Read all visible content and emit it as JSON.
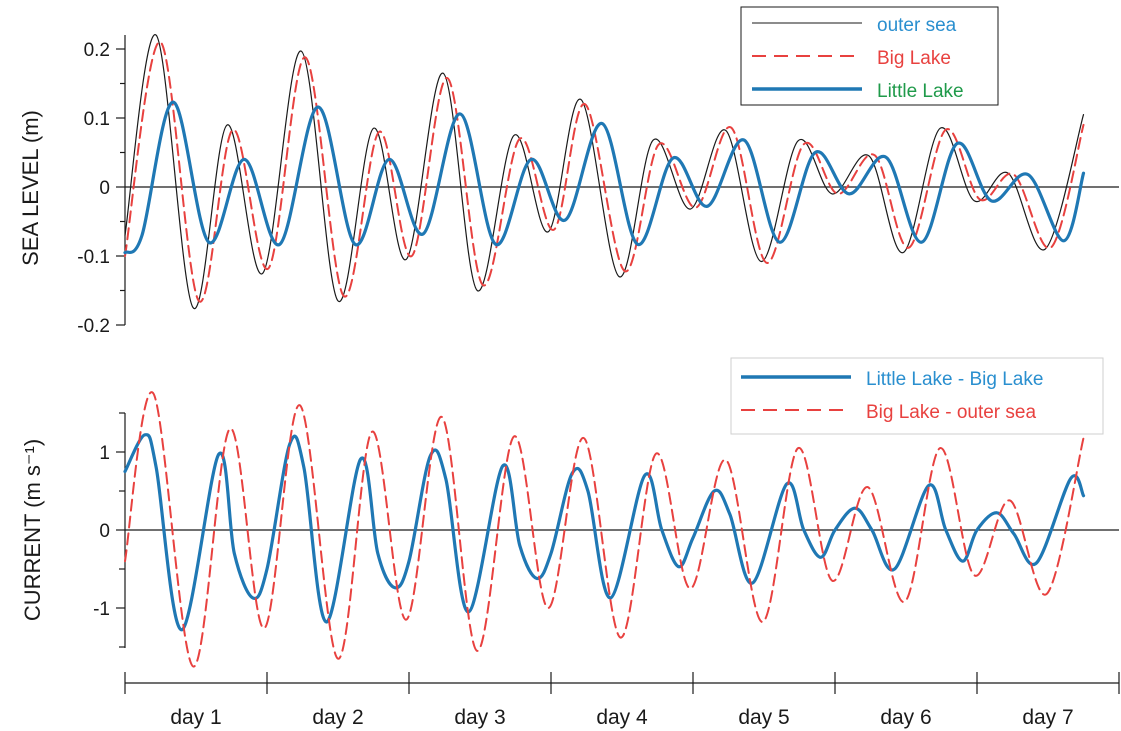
{
  "colors": {
    "outer_sea": "#1a1a1a",
    "big_lake": "#e8413f",
    "little_lake": "#1f78b4",
    "axis": "#1a1a1a",
    "legend_text_outer": "#2a8fcf",
    "legend_text_big": "#e8413f",
    "legend_text_little": "#1f9a4a",
    "legend_text_current_solid": "#2a8fcf",
    "legend_text_current_dashed": "#e8413f"
  },
  "x_axis": {
    "label": "",
    "range": [
      0.5,
      7.5
    ],
    "tick_positions": [
      0.5,
      1.5,
      2.5,
      3.5,
      4.5,
      5.5,
      6.5,
      7.5
    ],
    "day_labels": [
      "day 1",
      "day 2",
      "day 3",
      "day 4",
      "day 5",
      "day 6",
      "day 7"
    ]
  },
  "chart_data": [
    {
      "type": "line",
      "title": "",
      "ylabel": "SEA LEVEL (m)",
      "xlabel": "",
      "ylim": [
        -0.2,
        0.22
      ],
      "yticks": [
        -0.2,
        -0.1,
        0,
        0.1,
        0.2
      ],
      "ytick_labels": [
        "-0.2",
        "-0.1",
        "0",
        "0.1",
        "0.2"
      ],
      "zero_line": true,
      "legend": {
        "placement": "top-right",
        "entries": [
          "outer sea",
          "Big Lake",
          "Little Lake"
        ]
      },
      "series": [
        {
          "name": "outer sea",
          "style": "thin-solid",
          "points": [
            [
              0.5,
              -0.07
            ],
            [
              0.72,
              0.22
            ],
            [
              0.98,
              -0.175
            ],
            [
              1.22,
              0.09
            ],
            [
              1.47,
              -0.125
            ],
            [
              1.74,
              0.197
            ],
            [
              2.0,
              -0.165
            ],
            [
              2.25,
              0.085
            ],
            [
              2.48,
              -0.105
            ],
            [
              2.74,
              0.165
            ],
            [
              2.98,
              -0.15
            ],
            [
              3.24,
              0.075
            ],
            [
              3.48,
              -0.065
            ],
            [
              3.71,
              0.127
            ],
            [
              3.98,
              -0.13
            ],
            [
              4.22,
              0.068
            ],
            [
              4.48,
              -0.032
            ],
            [
              4.73,
              0.082
            ],
            [
              4.98,
              -0.108
            ],
            [
              5.24,
              0.067
            ],
            [
              5.48,
              -0.01
            ],
            [
              5.74,
              0.045
            ],
            [
              5.98,
              -0.095
            ],
            [
              6.24,
              0.085
            ],
            [
              6.48,
              -0.02
            ],
            [
              6.72,
              0.02
            ],
            [
              6.98,
              -0.09
            ],
            [
              7.25,
              0.105
            ]
          ]
        },
        {
          "name": "Big Lake",
          "style": "dashed",
          "points": [
            [
              0.5,
              -0.1
            ],
            [
              0.75,
              0.21
            ],
            [
              1.02,
              -0.165
            ],
            [
              1.26,
              0.083
            ],
            [
              1.51,
              -0.118
            ],
            [
              1.77,
              0.188
            ],
            [
              2.04,
              -0.158
            ],
            [
              2.29,
              0.08
            ],
            [
              2.52,
              -0.1
            ],
            [
              2.77,
              0.158
            ],
            [
              3.02,
              -0.142
            ],
            [
              3.28,
              0.07
            ],
            [
              3.52,
              -0.062
            ],
            [
              3.74,
              0.12
            ],
            [
              4.02,
              -0.122
            ],
            [
              4.26,
              0.062
            ],
            [
              4.52,
              -0.03
            ],
            [
              4.77,
              0.086
            ],
            [
              5.02,
              -0.11
            ],
            [
              5.28,
              0.062
            ],
            [
              5.52,
              -0.01
            ],
            [
              5.78,
              0.046
            ],
            [
              6.02,
              -0.088
            ],
            [
              6.28,
              0.083
            ],
            [
              6.52,
              -0.018
            ],
            [
              6.76,
              0.018
            ],
            [
              7.02,
              -0.088
            ],
            [
              7.25,
              0.09
            ]
          ]
        },
        {
          "name": "Little Lake",
          "style": "thick-solid",
          "points": [
            [
              0.5,
              -0.095
            ],
            [
              0.62,
              -0.07
            ],
            [
              0.84,
              0.123
            ],
            [
              1.09,
              -0.08
            ],
            [
              1.34,
              0.04
            ],
            [
              1.59,
              -0.083
            ],
            [
              1.86,
              0.116
            ],
            [
              2.12,
              -0.083
            ],
            [
              2.36,
              0.04
            ],
            [
              2.6,
              -0.068
            ],
            [
              2.86,
              0.106
            ],
            [
              3.11,
              -0.083
            ],
            [
              3.36,
              0.04
            ],
            [
              3.6,
              -0.048
            ],
            [
              3.86,
              0.092
            ],
            [
              4.11,
              -0.083
            ],
            [
              4.36,
              0.042
            ],
            [
              4.6,
              -0.028
            ],
            [
              4.86,
              0.068
            ],
            [
              5.11,
              -0.08
            ],
            [
              5.36,
              0.05
            ],
            [
              5.6,
              -0.01
            ],
            [
              5.86,
              0.043
            ],
            [
              6.11,
              -0.08
            ],
            [
              6.36,
              0.063
            ],
            [
              6.6,
              -0.02
            ],
            [
              6.86,
              0.018
            ],
            [
              7.11,
              -0.078
            ],
            [
              7.25,
              0.02
            ]
          ]
        }
      ]
    },
    {
      "type": "line",
      "title": "",
      "ylabel": "CURRENT (m s⁻¹)",
      "xlabel": "",
      "ylim": [
        -1.6,
        1.6
      ],
      "yticks": [
        -1.5,
        -1,
        -0.5,
        0,
        0.5,
        1,
        1.5
      ],
      "ytick_labels": [
        "",
        "-1",
        "",
        "0",
        "",
        "1",
        ""
      ],
      "zero_line": true,
      "legend": {
        "placement": "top-right",
        "entries": [
          "Little Lake - Big Lake",
          "Big Lake - outer sea"
        ]
      },
      "series": [
        {
          "name": "Little Lake - Big Lake",
          "style": "thick-solid",
          "points": [
            [
              0.5,
              0.75
            ],
            [
              0.64,
              1.22
            ],
            [
              0.72,
              0.8
            ],
            [
              0.9,
              -1.28
            ],
            [
              1.16,
              0.97
            ],
            [
              1.27,
              -0.3
            ],
            [
              1.4,
              -0.87
            ],
            [
              1.5,
              -0.5
            ],
            [
              1.66,
              1.1
            ],
            [
              1.76,
              0.8
            ],
            [
              1.92,
              -1.18
            ],
            [
              2.16,
              0.91
            ],
            [
              2.28,
              -0.3
            ],
            [
              2.4,
              -0.74
            ],
            [
              2.5,
              -0.4
            ],
            [
              2.65,
              0.95
            ],
            [
              2.76,
              0.65
            ],
            [
              2.92,
              -1.05
            ],
            [
              3.16,
              0.82
            ],
            [
              3.28,
              -0.2
            ],
            [
              3.4,
              -0.62
            ],
            [
              3.5,
              -0.3
            ],
            [
              3.65,
              0.73
            ],
            [
              3.76,
              0.5
            ],
            [
              3.92,
              -0.87
            ],
            [
              4.16,
              0.7
            ],
            [
              4.28,
              0.0
            ],
            [
              4.4,
              -0.47
            ],
            [
              4.5,
              -0.1
            ],
            [
              4.65,
              0.5
            ],
            [
              4.76,
              0.2
            ],
            [
              4.92,
              -0.68
            ],
            [
              5.16,
              0.59
            ],
            [
              5.28,
              0.0
            ],
            [
              5.4,
              -0.35
            ],
            [
              5.5,
              0.0
            ],
            [
              5.64,
              0.28
            ],
            [
              5.76,
              0.0
            ],
            [
              5.92,
              -0.5
            ],
            [
              6.16,
              0.57
            ],
            [
              6.28,
              0.0
            ],
            [
              6.4,
              -0.4
            ],
            [
              6.5,
              0.0
            ],
            [
              6.64,
              0.22
            ],
            [
              6.76,
              -0.05
            ],
            [
              6.92,
              -0.42
            ],
            [
              7.16,
              0.66
            ],
            [
              7.25,
              0.44
            ]
          ]
        },
        {
          "name": "Big Lake - outer sea",
          "style": "dashed",
          "points": [
            [
              0.5,
              -0.4
            ],
            [
              0.7,
              1.75
            ],
            [
              0.98,
              -1.75
            ],
            [
              1.24,
              1.3
            ],
            [
              1.48,
              -1.26
            ],
            [
              1.73,
              1.6
            ],
            [
              2.0,
              -1.65
            ],
            [
              2.24,
              1.26
            ],
            [
              2.48,
              -1.15
            ],
            [
              2.73,
              1.45
            ],
            [
              2.98,
              -1.55
            ],
            [
              3.24,
              1.2
            ],
            [
              3.48,
              -1.0
            ],
            [
              3.73,
              1.18
            ],
            [
              3.99,
              -1.38
            ],
            [
              4.24,
              0.98
            ],
            [
              4.48,
              -0.75
            ],
            [
              4.73,
              0.9
            ],
            [
              4.99,
              -1.18
            ],
            [
              5.24,
              1.05
            ],
            [
              5.48,
              -0.65
            ],
            [
              5.73,
              0.55
            ],
            [
              5.99,
              -0.92
            ],
            [
              6.24,
              1.05
            ],
            [
              6.48,
              -0.58
            ],
            [
              6.73,
              0.38
            ],
            [
              6.99,
              -0.82
            ],
            [
              7.25,
              1.18
            ]
          ]
        }
      ]
    }
  ]
}
